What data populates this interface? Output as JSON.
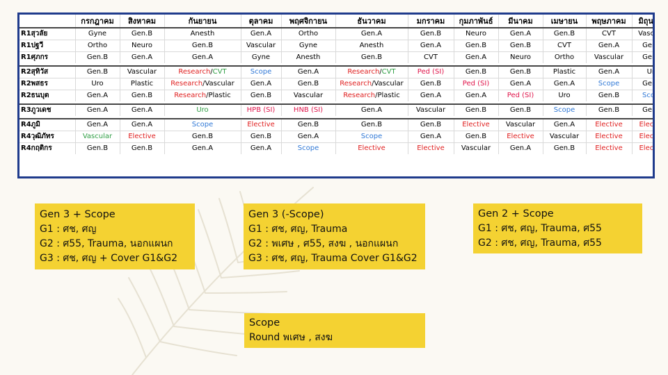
{
  "schedule": {
    "months": [
      "กรกฎาคม",
      "สิงหาคม",
      "กันยายน",
      "ตุลาคม",
      "พฤศจิกายน",
      "ธันวาคม",
      "มกราคม",
      "กุมภาพันธ์",
      "มีนาคม",
      "เมษายน",
      "พฤษภาคม",
      "มิถุนายน"
    ],
    "groups": [
      {
        "rows": [
          {
            "label": "R1สุวลัย",
            "cells": [
              {
                "text": "Gyne"
              },
              {
                "text": "Gen.B"
              },
              {
                "text": "Anesth"
              },
              {
                "text": "Gen.A"
              },
              {
                "text": "Ortho"
              },
              {
                "text": "Gen.A"
              },
              {
                "text": "Gen.B"
              },
              {
                "text": "Neuro"
              },
              {
                "text": "Gen.A"
              },
              {
                "text": "Gen.B"
              },
              {
                "text": "CVT"
              },
              {
                "text": "Vascular"
              }
            ]
          },
          {
            "label": "R1ปฐวี",
            "cells": [
              {
                "text": "Ortho"
              },
              {
                "text": "Neuro"
              },
              {
                "text": "Gen.B"
              },
              {
                "text": "Vascular"
              },
              {
                "text": "Gyne"
              },
              {
                "text": "Anesth"
              },
              {
                "text": "Gen.A"
              },
              {
                "text": "Gen.B"
              },
              {
                "text": "Gen.B"
              },
              {
                "text": "CVT"
              },
              {
                "text": "Gen.A"
              },
              {
                "text": "Gen.A"
              }
            ]
          },
          {
            "label": "R1ศุภกร",
            "cells": [
              {
                "text": "Gen.B"
              },
              {
                "text": "Gen.A"
              },
              {
                "text": "Gen.A"
              },
              {
                "text": "Gyne"
              },
              {
                "text": "Anesth"
              },
              {
                "text": "Gen.B"
              },
              {
                "text": "CVT"
              },
              {
                "text": "Gen.A"
              },
              {
                "text": "Neuro"
              },
              {
                "text": "Ortho"
              },
              {
                "text": "Vascular"
              },
              {
                "text": "Gen.B"
              }
            ]
          }
        ]
      },
      {
        "rows": [
          {
            "label": "R2สุทิวัส",
            "cells": [
              {
                "text": "Gen.B"
              },
              {
                "text": "Vascular"
              },
              {
                "parts": [
                  {
                    "text": "Research",
                    "color": "red"
                  },
                  {
                    "text": "/"
                  },
                  {
                    "text": "CVT",
                    "color": "green"
                  }
                ]
              },
              {
                "text": "Scope",
                "color": "blue"
              },
              {
                "text": "Gen.A"
              },
              {
                "parts": [
                  {
                    "text": "Research",
                    "color": "red"
                  },
                  {
                    "text": "/"
                  },
                  {
                    "text": "CVT",
                    "color": "green"
                  }
                ]
              },
              {
                "text": "Ped (SI)",
                "color": "mag"
              },
              {
                "text": "Gen.B"
              },
              {
                "text": "Gen.B"
              },
              {
                "text": "Plastic"
              },
              {
                "text": "Gen.A"
              },
              {
                "text": "Uro"
              }
            ]
          },
          {
            "label": "R2พสธร",
            "cells": [
              {
                "text": "Uro"
              },
              {
                "text": "Plastic"
              },
              {
                "parts": [
                  {
                    "text": "Research",
                    "color": "red"
                  },
                  {
                    "text": "/Vascular"
                  }
                ]
              },
              {
                "text": "Gen.A"
              },
              {
                "text": "Gen.B"
              },
              {
                "parts": [
                  {
                    "text": "Research",
                    "color": "red"
                  },
                  {
                    "text": "/Vascular"
                  }
                ]
              },
              {
                "text": "Gen.B"
              },
              {
                "text": "Ped (SI)",
                "color": "mag"
              },
              {
                "text": "Gen.A"
              },
              {
                "text": "Gen.A"
              },
              {
                "text": "Scope",
                "color": "blue"
              },
              {
                "text": "Gen.B"
              }
            ]
          },
          {
            "label": "R2ธนบุต",
            "cells": [
              {
                "text": "Gen.A"
              },
              {
                "text": "Gen.B"
              },
              {
                "parts": [
                  {
                    "text": "Research",
                    "color": "red"
                  },
                  {
                    "text": "/Plastic"
                  }
                ]
              },
              {
                "text": "Gen.B"
              },
              {
                "text": "Vascular"
              },
              {
                "parts": [
                  {
                    "text": "Research",
                    "color": "red"
                  },
                  {
                    "text": "/Plastic"
                  }
                ]
              },
              {
                "text": "Gen.A"
              },
              {
                "text": "Gen.A"
              },
              {
                "text": "Ped (SI)",
                "color": "mag"
              },
              {
                "text": "Uro"
              },
              {
                "text": "Gen.B"
              },
              {
                "text": "Scope",
                "color": "blue"
              }
            ]
          }
        ]
      },
      {
        "rows": [
          {
            "label": "R3ภูวเดช",
            "cells": [
              {
                "text": "Gen.A"
              },
              {
                "text": "Gen.A"
              },
              {
                "text": "Uro",
                "color": "green"
              },
              {
                "text": "HPB (SI)",
                "color": "mag"
              },
              {
                "text": "HNB (SI)",
                "color": "mag"
              },
              {
                "text": "Gen.A"
              },
              {
                "text": "Vascular"
              },
              {
                "text": "Gen.B"
              },
              {
                "text": "Gen.B"
              },
              {
                "text": "Scope",
                "color": "blue"
              },
              {
                "text": "Gen.B"
              },
              {
                "text": "Gen.A"
              }
            ]
          }
        ]
      },
      {
        "rows": [
          {
            "label": "R4ภูมิ",
            "cells": [
              {
                "text": "Gen.A"
              },
              {
                "text": "Gen.A"
              },
              {
                "text": "Scope",
                "color": "blue"
              },
              {
                "text": "Elective",
                "color": "red"
              },
              {
                "text": "Gen.B"
              },
              {
                "text": "Gen.B"
              },
              {
                "text": "Gen.B"
              },
              {
                "text": "Elective",
                "color": "red"
              },
              {
                "text": "Vascular"
              },
              {
                "text": "Gen.A"
              },
              {
                "text": "Elective",
                "color": "red"
              },
              {
                "text": "Elective",
                "color": "red"
              }
            ]
          },
          {
            "label": "R4วุฒิภัทร",
            "cells": [
              {
                "text": "Vascular",
                "color": "green"
              },
              {
                "text": "Elective",
                "color": "red"
              },
              {
                "text": "Gen.B"
              },
              {
                "text": "Gen.B"
              },
              {
                "text": "Gen.A"
              },
              {
                "text": "Scope",
                "color": "blue"
              },
              {
                "text": "Gen.A"
              },
              {
                "text": "Gen.B"
              },
              {
                "text": "Elective",
                "color": "red"
              },
              {
                "text": "Vascular"
              },
              {
                "text": "Elective",
                "color": "red"
              },
              {
                "text": "Elective",
                "color": "red"
              }
            ]
          },
          {
            "label": "R4กฤติกร",
            "cells": [
              {
                "text": "Gen.B"
              },
              {
                "text": "Gen.B"
              },
              {
                "text": "Gen.A"
              },
              {
                "text": "Gen.A"
              },
              {
                "text": "Scope",
                "color": "blue"
              },
              {
                "text": "Elective",
                "color": "red"
              },
              {
                "text": "Elective",
                "color": "red"
              },
              {
                "text": "Vascular"
              },
              {
                "text": "Gen.A"
              },
              {
                "text": "Gen.B"
              },
              {
                "text": "Elective",
                "color": "red"
              },
              {
                "text": "Elective",
                "color": "red"
              }
            ]
          }
        ]
      }
    ]
  },
  "colors": {
    "table_border": "#1f3b8c",
    "note_box": "#f4d232",
    "red": "#e02020",
    "green": "#2f9e44",
    "blue": "#2f78d6",
    "magenta": "#e0144a"
  },
  "notes": [
    {
      "id": "box-a",
      "title": "Gen 3 + Scope",
      "lines": [
        "G1 : ศช, ศญ",
        "G2 : ศ55, Trauma, นอกแผนก",
        "G3 : ศช, ศญ + Cover G1&G2"
      ]
    },
    {
      "id": "box-b",
      "title": "Gen 3 (-Scope)",
      "lines": [
        "G1 : ศช, ศญ, Trauma",
        "G2 : พเศษ , ศ55, สงฆ , นอกแผนก",
        "G3 : ศช, ศญ, Trauma Cover G1&G2"
      ]
    },
    {
      "id": "box-c",
      "title": "Gen 2 + Scope",
      "lines": [
        "G1 : ศช, ศญ, Trauma, ศ55",
        "G2 : ศช, ศญ, Trauma, ศ55"
      ]
    },
    {
      "id": "box-d",
      "title": "Scope",
      "lines": [
        "Round พเศษ , สงฆ"
      ]
    }
  ]
}
